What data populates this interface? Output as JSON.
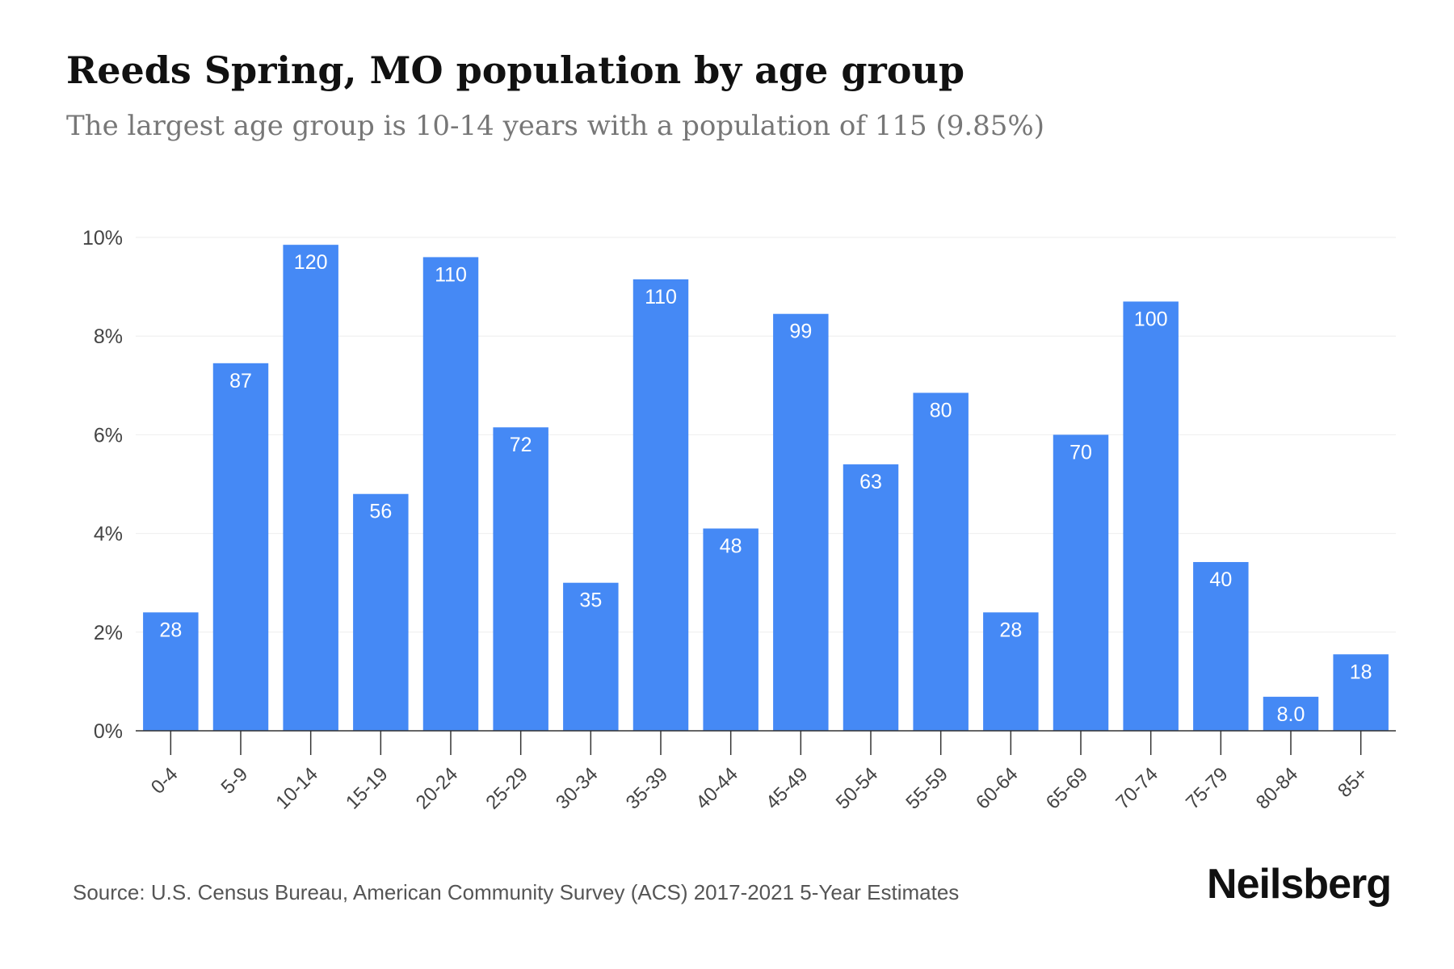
{
  "title": "Reeds Spring, MO population by age group",
  "subtitle": "The largest age group is 10-14 years with a population of 115 (9.85%)",
  "source": "Source: U.S. Census Bureau, American Community Survey (ACS) 2017-2021 5-Year Estimates",
  "brand": "Neilsberg",
  "colors": {
    "bar": "#4589f5",
    "bar_label": "#ffffff",
    "grid": "#eeeeee",
    "axis": "#333333",
    "tick_text": "#444444"
  },
  "chart_data": {
    "type": "bar",
    "categories": [
      "0-4",
      "5-9",
      "10-14",
      "15-19",
      "20-24",
      "25-29",
      "30-34",
      "35-39",
      "40-44",
      "45-49",
      "50-54",
      "55-59",
      "60-64",
      "65-69",
      "70-74",
      "75-79",
      "80-84",
      "85+"
    ],
    "values": [
      2.4,
      7.45,
      9.85,
      4.8,
      9.6,
      6.15,
      3.0,
      9.15,
      4.1,
      8.45,
      5.4,
      6.85,
      2.4,
      6.0,
      8.7,
      3.42,
      0.69,
      1.55
    ],
    "data_labels": [
      "28",
      "87",
      "120",
      "56",
      "110",
      "72",
      "35",
      "110",
      "48",
      "99",
      "63",
      "80",
      "28",
      "70",
      "100",
      "40",
      "8.0",
      "18"
    ],
    "y_ticks": [
      "0%",
      "2%",
      "4%",
      "6%",
      "8%",
      "10%"
    ],
    "ylim": [
      0,
      10
    ],
    "grid": true,
    "title": "Reeds Spring, MO population by age group",
    "xlabel": "",
    "ylabel": ""
  }
}
